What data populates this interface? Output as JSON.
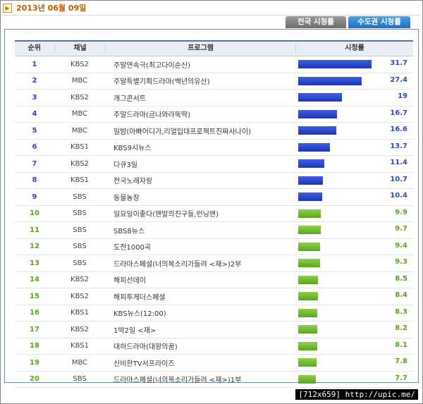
{
  "header": {
    "date": "2013년 06월 09일",
    "date_icon": "arrow-icon"
  },
  "tabs": [
    {
      "label": "전국 시청률",
      "active": false
    },
    {
      "label": "수도권 시청률",
      "active": true
    }
  ],
  "table": {
    "columns": [
      "순위",
      "채널",
      "프로그램",
      "시청률"
    ],
    "rows": [
      {
        "rank": "1",
        "channel": "KBS2",
        "program": "주말연속극(최고다이순신)",
        "rating": 31.7,
        "label": "31.7",
        "color": "blue"
      },
      {
        "rank": "2",
        "channel": "MBC",
        "program": "주말특별기획드라마(백년의유산)",
        "rating": 27.4,
        "label": "27.4",
        "color": "blue"
      },
      {
        "rank": "3",
        "channel": "KBS2",
        "program": "개그콘서트",
        "rating": 19,
        "label": "19",
        "color": "blue"
      },
      {
        "rank": "4",
        "channel": "MBC",
        "program": "주말드라마(금나와라뚝딱)",
        "rating": 16.7,
        "label": "16.7",
        "color": "blue"
      },
      {
        "rank": "5",
        "channel": "MBC",
        "program": "일밤(아빠어디가,리얼입대프로젝트진짜사나이)",
        "rating": 16.6,
        "label": "16.6",
        "color": "blue"
      },
      {
        "rank": "6",
        "channel": "KBS1",
        "program": "KBS9시뉴스",
        "rating": 13.7,
        "label": "13.7",
        "color": "blue"
      },
      {
        "rank": "7",
        "channel": "KBS2",
        "program": "다큐3일",
        "rating": 11.4,
        "label": "11.4",
        "color": "blue"
      },
      {
        "rank": "8",
        "channel": "KBS1",
        "program": "전국노래자랑",
        "rating": 10.7,
        "label": "10.7",
        "color": "blue"
      },
      {
        "rank": "9",
        "channel": "SBS",
        "program": "동물농장",
        "rating": 10.4,
        "label": "10.4",
        "color": "blue"
      },
      {
        "rank": "10",
        "channel": "SBS",
        "program": "일요일이좋다(맨발의친구들,런닝맨)",
        "rating": 9.9,
        "label": "9.9",
        "color": "green"
      },
      {
        "rank": "11",
        "channel": "SBS",
        "program": "SBS8뉴스",
        "rating": 9.7,
        "label": "9.7",
        "color": "green"
      },
      {
        "rank": "12",
        "channel": "SBS",
        "program": "도전1000곡",
        "rating": 9.4,
        "label": "9.4",
        "color": "green"
      },
      {
        "rank": "13",
        "channel": "SBS",
        "program": "드라마스페셜(너의목소리가들려 <재>)2부",
        "rating": 9.3,
        "label": "9.3",
        "color": "green"
      },
      {
        "rank": "14",
        "channel": "KBS2",
        "program": "해피선데이",
        "rating": 8.5,
        "label": "8.5",
        "color": "green"
      },
      {
        "rank": "15",
        "channel": "KBS2",
        "program": "해피투게더스페셜",
        "rating": 8.4,
        "label": "8.4",
        "color": "green"
      },
      {
        "rank": "16",
        "channel": "KBS1",
        "program": "KBS뉴스(12:00)",
        "rating": 8.3,
        "label": "8.3",
        "color": "green"
      },
      {
        "rank": "17",
        "channel": "KBS2",
        "program": "1박2일 <재>",
        "rating": 8.2,
        "label": "8.2",
        "color": "green"
      },
      {
        "rank": "18",
        "channel": "KBS1",
        "program": "대하드라마(대왕의꿈)",
        "rating": 8.1,
        "label": "8.1",
        "color": "green"
      },
      {
        "rank": "19",
        "channel": "MBC",
        "program": "신비한TV서프라이즈",
        "rating": 7.8,
        "label": "7.8",
        "color": "green"
      },
      {
        "rank": "20",
        "channel": "SBS",
        "program": "드라마스페셜(너의목소리가들려 <재>)1부",
        "rating": 7.7,
        "label": "7.7",
        "color": "green"
      }
    ]
  },
  "watermark": "[712x659] http://upic.me/"
}
